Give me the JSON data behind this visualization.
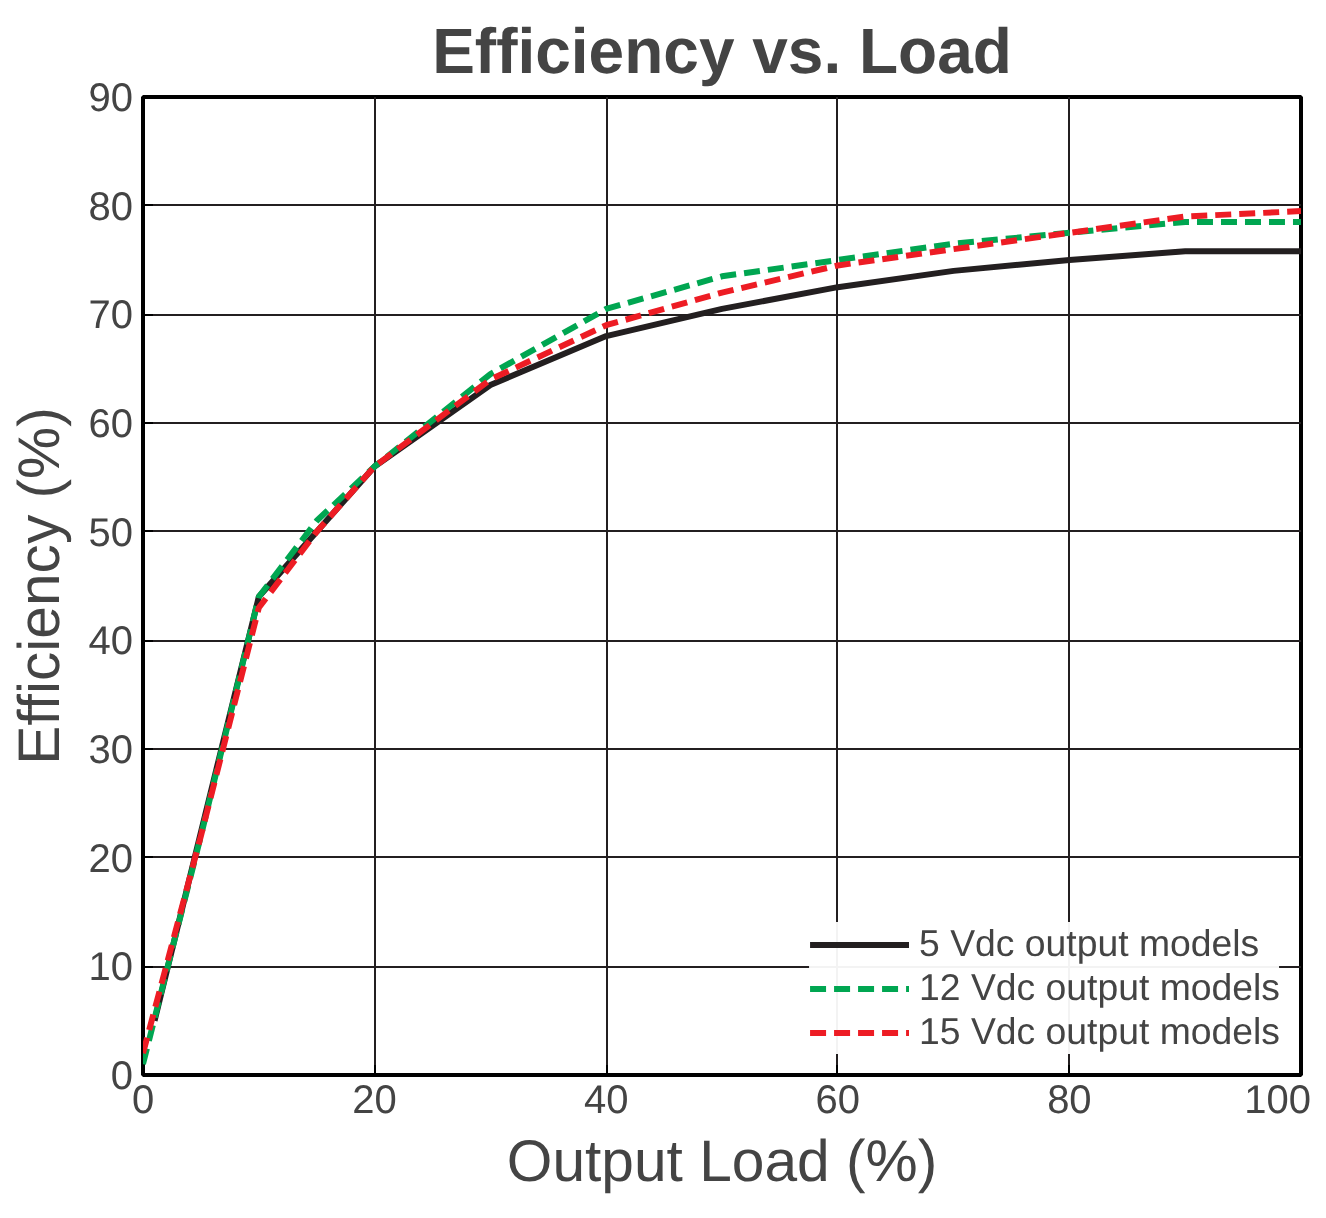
{
  "chart_data": {
    "type": "line",
    "title": "Efficiency vs. Load",
    "xlabel": "Output Load (%)",
    "ylabel": "Efficiency (%)",
    "xlim": [
      0,
      100
    ],
    "ylim": [
      0,
      90
    ],
    "xticks": [
      0,
      20,
      40,
      60,
      80,
      100
    ],
    "yticks": [
      0,
      10,
      20,
      30,
      40,
      50,
      60,
      70,
      80,
      90
    ],
    "grid": true,
    "legend": "bottom right",
    "marker": "none",
    "series": [
      {
        "name": "5 Vdc output models",
        "color": "#231f20",
        "line_style": "solid",
        "x": [
          1,
          10,
          15,
          20,
          30,
          40,
          50,
          60,
          70,
          80,
          90,
          100
        ],
        "values": [
          5,
          44,
          50,
          56,
          63.5,
          68,
          70.5,
          72.5,
          74,
          75,
          75.8,
          75.8
        ]
      },
      {
        "name": "12 Vdc output models",
        "color": "#00a651",
        "line_style": "dashed",
        "x": [
          0,
          5,
          10,
          15,
          20,
          30,
          40,
          50,
          60,
          70,
          80,
          90,
          100
        ],
        "values": [
          1,
          22,
          44,
          51,
          56,
          64.5,
          70.5,
          73.5,
          75,
          76.5,
          77.5,
          78.5,
          78.5
        ]
      },
      {
        "name": "15 Vdc output models",
        "color": "#ed1c24",
        "line_style": "dashed",
        "x": [
          0,
          5,
          10,
          15,
          20,
          30,
          40,
          50,
          60,
          70,
          80,
          90,
          100
        ],
        "values": [
          2,
          22,
          43,
          50,
          56,
          64,
          69,
          72,
          74.5,
          76,
          77.5,
          79,
          79.5
        ]
      }
    ]
  }
}
